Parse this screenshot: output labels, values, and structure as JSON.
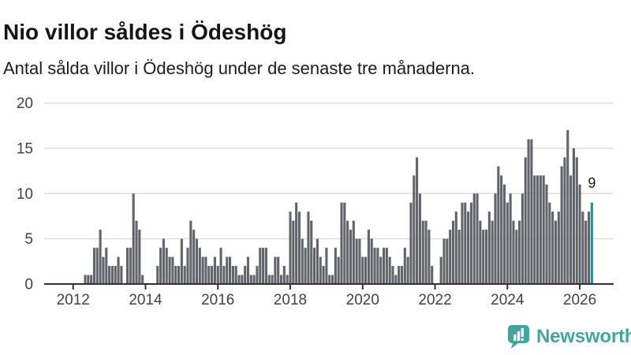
{
  "header": {
    "title": "Nio villor såldes i Ödeshög",
    "subtitle": "Antal sålda villor i Ödeshög under de senaste tre månaderna."
  },
  "chart_data": {
    "type": "bar",
    "title": "Nio villor såldes i Ödeshög",
    "subtitle": "Antal sålda villor i Ödeshög under de senaste tre månaderna.",
    "frequency": "monthly",
    "x_start_month": "2011-06",
    "x_axis_end_month": "2026-12",
    "ylim": [
      0,
      20
    ],
    "yticks": [
      "0",
      "5",
      "10",
      "15",
      "20"
    ],
    "xtick_labels": [
      "2012",
      "2014",
      "2016",
      "2018",
      "2020",
      "2022",
      "2024",
      "2026"
    ],
    "grid": true,
    "legend": "none",
    "bar_color": "#63636b",
    "highlight_color": "#00a2a5",
    "annotation_label": "9",
    "highlight_last_value": 9,
    "values": [
      0,
      0,
      0,
      0,
      0,
      0,
      0,
      0,
      0,
      0,
      0,
      1,
      1,
      1,
      4,
      4,
      6,
      3,
      4,
      2,
      2,
      2,
      3,
      2,
      0,
      4,
      4,
      10,
      7,
      6,
      1,
      0,
      0,
      0,
      0,
      2,
      4,
      5,
      4,
      3,
      3,
      2,
      2,
      5,
      2,
      4,
      7,
      6,
      5,
      4,
      3,
      3,
      2,
      2,
      3,
      2,
      4,
      2,
      3,
      3,
      2,
      2,
      1,
      1,
      2,
      3,
      1,
      1,
      2,
      4,
      4,
      4,
      1,
      1,
      3,
      3,
      1,
      2,
      1,
      8,
      7,
      9,
      8,
      5,
      4,
      8,
      7,
      4,
      5,
      3,
      2,
      4,
      1,
      1,
      4,
      3,
      9,
      9,
      7,
      6,
      7,
      5,
      5,
      3,
      3,
      6,
      5,
      4,
      4,
      3,
      4,
      4,
      3,
      2,
      1,
      2,
      2,
      4,
      3,
      9,
      12,
      14,
      10,
      7,
      7,
      6,
      2,
      0,
      0,
      3,
      5,
      5,
      6,
      7,
      8,
      6,
      9,
      9,
      8,
      9,
      10,
      10,
      7,
      6,
      6,
      8,
      7,
      10,
      13,
      12,
      11,
      9,
      10,
      7,
      6,
      7,
      10,
      14,
      16,
      16,
      12,
      12,
      12,
      12,
      11,
      9,
      8,
      7,
      8,
      13,
      14,
      17,
      12,
      15,
      14,
      11,
      8,
      7,
      8,
      9
    ]
  },
  "footer": {
    "brand": "Newsworthy",
    "brand_color": "#45a59d"
  }
}
